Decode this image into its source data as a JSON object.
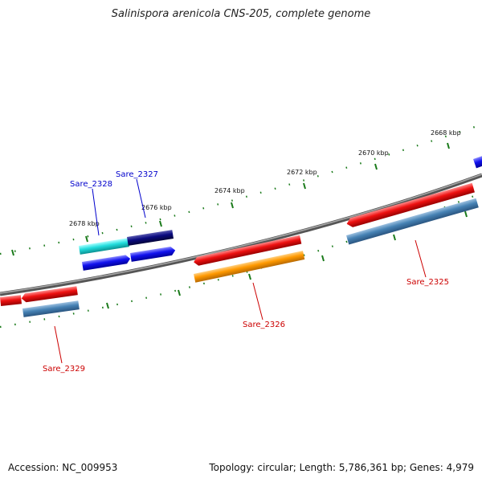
{
  "title": "Salinispora arenicola CNS-205, complete genome",
  "footer": {
    "accession": "Accession: NC_009953",
    "summary": "Topology: circular; Length: 5,786,361 bp; Genes: 4,979"
  },
  "scale_labels": {
    "kbp_2668": "2668 kbp",
    "kbp_2670": "2670 kbp",
    "kbp_2672": "2672 kbp",
    "kbp_2674": "2674 kbp",
    "kbp_2676": "2676 kbp",
    "kbp_2678": "2678 kbp"
  },
  "genes": {
    "sare_2325": "Sare_2325",
    "sare_2326": "Sare_2326",
    "sare_2327": "Sare_2327",
    "sare_2328": "Sare_2328",
    "sare_2329": "Sare_2329"
  },
  "colors": {
    "forward_label": "#0000cc",
    "reverse_label": "#cc0000",
    "red": "#ee1111",
    "blue": "#1111ee",
    "steelblue": "#4682b4",
    "orange": "#ff9900",
    "navy": "#0a0a80",
    "cyan": "#22dddd",
    "tick": "#1a7a1a",
    "backbone": "#777777"
  }
}
